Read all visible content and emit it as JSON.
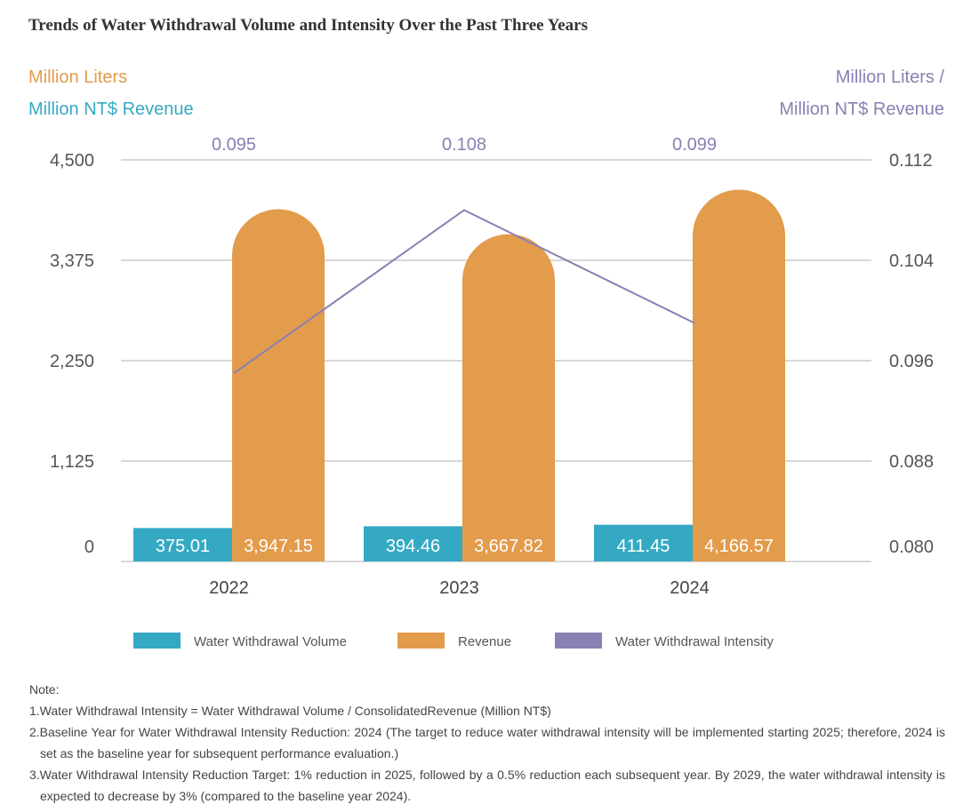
{
  "chart_data": {
    "type": "bar",
    "title": "Trends of Water Withdrawal Volume and Intensity Over the Past Three Years",
    "left_axis_label": [
      "Million Liters",
      "Million NT$ Revenue"
    ],
    "right_axis_label": [
      "Million Liters /",
      "Million NT$ Revenue"
    ],
    "categories": [
      "2022",
      "2023",
      "2024"
    ],
    "left_axis": {
      "ticks": [
        "0",
        "1,125",
        "2,250",
        "3,375",
        "4,500"
      ],
      "ylim": [
        0,
        4500
      ]
    },
    "right_axis": {
      "ticks": [
        "0.080",
        "0.088",
        "0.096",
        "0.104",
        "0.112"
      ],
      "ylim": [
        0.08,
        0.112
      ]
    },
    "series": [
      {
        "name": "Water Withdrawal Volume",
        "type": "bar",
        "axis": "left",
        "color": "#35A9C3",
        "values": [
          375.01,
          394.46,
          411.45
        ],
        "labels": [
          "375.01",
          "394.46",
          "411.45"
        ]
      },
      {
        "name": "Revenue",
        "type": "bar",
        "axis": "left",
        "color": "#E39B4C",
        "values": [
          3947.15,
          3667.82,
          4166.57
        ],
        "labels": [
          "3,947.15",
          "3,667.82",
          "4,166.57"
        ]
      },
      {
        "name": "Water Withdrawal Intensity",
        "type": "line",
        "axis": "right",
        "color": "#8A80B3",
        "values": [
          0.095,
          0.108,
          0.099
        ],
        "labels": [
          "0.095",
          "0.108",
          "0.099"
        ]
      }
    ],
    "grid": true,
    "legend": "bottom"
  },
  "notes": {
    "heading": "Note:",
    "items": [
      "1.Water Withdrawal Intensity = Water Withdrawal Volume / ConsolidatedRevenue (Million NT$)",
      "2.Baseline Year for Water Withdrawal Intensity Reduction: 2024 (The target to reduce water withdrawal intensity will be implemented starting 2025; therefore, 2024 is set as the baseline year for subsequent performance evaluation.)",
      "3.Water Withdrawal Intensity Reduction Target: 1% reduction in 2025, followed by a 0.5% reduction each subsequent year. By 2029, the water withdrawal intensity is expected to decrease by 3% (compared to the baseline year 2024)."
    ]
  }
}
